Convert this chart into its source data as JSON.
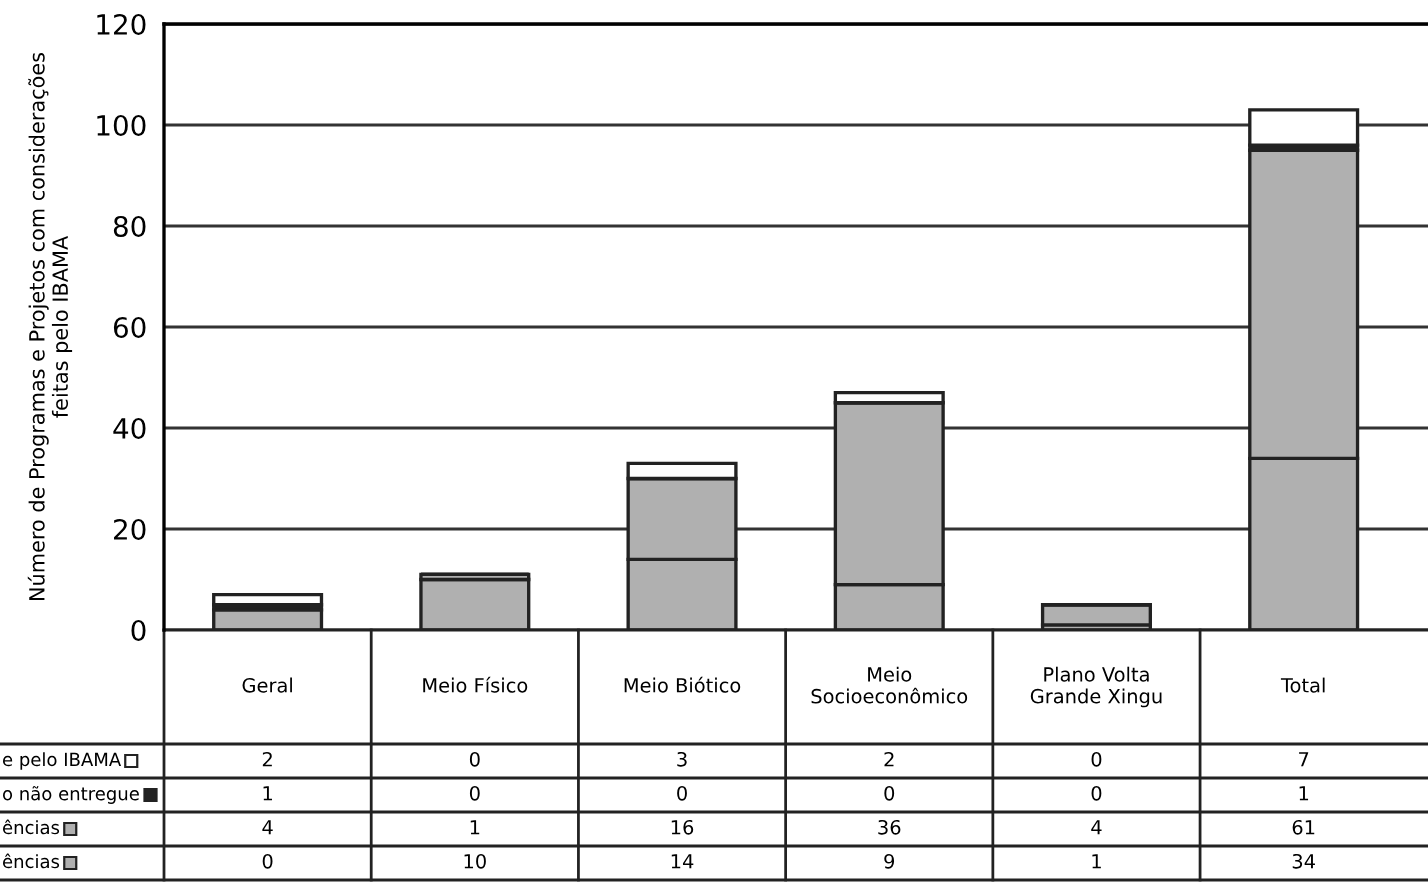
{
  "chart_data": {
    "type": "bar",
    "stacked": true,
    "ylabel": "Número de Programas e Projetos com considerações\nfeitas pelo IBAMA",
    "categories": [
      "Geral",
      "Meio Físico",
      "Meio Biótico",
      "Meio\nSocioeconômico",
      "Plano Volta\nGrande Xingu",
      "Total"
    ],
    "series": [
      {
        "name": "ências",
        "color": "#b0b0b0",
        "values": [
          0,
          10,
          14,
          9,
          1,
          34
        ]
      },
      {
        "name": "ências",
        "color": "#b0b0b0",
        "values": [
          4,
          1,
          16,
          36,
          4,
          61
        ]
      },
      {
        "name": "o não entregue",
        "color": "#222222",
        "values": [
          1,
          0,
          0,
          0,
          0,
          1
        ]
      },
      {
        "name": "e pelo IBAMA",
        "color": "#ffffff",
        "values": [
          2,
          0,
          3,
          2,
          0,
          7
        ]
      }
    ],
    "ylim": [
      0,
      120
    ],
    "yticks": [
      0,
      20,
      40,
      60,
      80,
      100,
      120
    ],
    "grid": "y",
    "data_labels": true,
    "legend": "left"
  }
}
